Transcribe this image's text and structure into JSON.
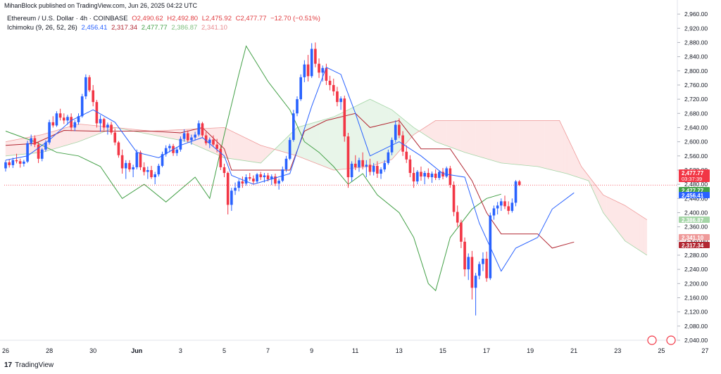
{
  "header": {
    "published": "MihanBlock published on TradingView.com, Jun 26, 2025 04:22 UTC",
    "symbol": "Ethereum / U.S. Dollar · 4h · COINBASE",
    "open": "O2,490.62",
    "high": "H2,492.80",
    "low": "L2,475.92",
    "close": "C2,477.77",
    "change": "−12.70 (−0.51%)",
    "indicator": "Ichimoku (9, 26, 52, 26)",
    "ind_v1": "2,456.41",
    "ind_v2": "2,317.34",
    "ind_v3": "2,477.77",
    "ind_v4": "2,386.87",
    "ind_v5": "2,341.10"
  },
  "footer": {
    "brand": "TradingView",
    "logo": "17"
  },
  "colors": {
    "up": "#2962ff",
    "down": "#f23645",
    "tenkan": "#2962ff",
    "kijun": "#b22833",
    "chikou": "#43a047",
    "span_a": "#a5d6a7",
    "span_b": "#ef9a9a",
    "cloud_green": "#e8f5e9",
    "cloud_red": "#fde7e7"
  },
  "chart_data": {
    "type": "candlestick",
    "title": "Ethereum / U.S. Dollar · 4h · COINBASE",
    "ylim": [
      2040,
      2980
    ],
    "y_ticks": [
      "2,960.00",
      "2,920.00",
      "2,880.00",
      "2,840.00",
      "2,800.00",
      "2,760.00",
      "2,720.00",
      "2,680.00",
      "2,640.00",
      "2,600.00",
      "2,560.00",
      "2,520.00",
      "2,480.00",
      "2,440.00",
      "2,400.00",
      "2,360.00",
      "2,320.00",
      "2,280.00",
      "2,240.00",
      "2,200.00",
      "2,160.00",
      "2,120.00",
      "2,080.00",
      "2,040.00"
    ],
    "x_ticks": [
      "26",
      "28",
      "30",
      "Jun",
      "3",
      "5",
      "7",
      "9",
      "11",
      "13",
      "15",
      "17",
      "19",
      "21",
      "23",
      "25",
      "27"
    ],
    "price_labels": [
      {
        "value": 2477.77,
        "text": "2,477.77",
        "sub": "03:37:39",
        "color": "#f23645"
      },
      {
        "value": 2477.77,
        "text": "2,477.77",
        "color": "#43a047"
      },
      {
        "value": 2456.41,
        "text": "2,456.41",
        "color": "#2962ff"
      },
      {
        "value": 2386.87,
        "text": "2,386.87",
        "color": "#a5d6a7"
      },
      {
        "value": 2341.1,
        "text": "2,341.10",
        "color": "#ef9a9a"
      },
      {
        "value": 2317.34,
        "text": "2,317.34",
        "color": "#b22833"
      }
    ],
    "x_start": "2025-05-26",
    "bar_days": 0.1667,
    "candles": [
      [
        2525,
        2548,
        2516,
        2542
      ],
      [
        2542,
        2551,
        2527,
        2534
      ],
      [
        2534,
        2555,
        2526,
        2548
      ],
      [
        2548,
        2566,
        2539,
        2545
      ],
      [
        2545,
        2552,
        2527,
        2538
      ],
      [
        2538,
        2549,
        2530,
        2544
      ],
      [
        2544,
        2603,
        2540,
        2596
      ],
      [
        2596,
        2620,
        2588,
        2610
      ],
      [
        2610,
        2618,
        2585,
        2592
      ],
      [
        2592,
        2600,
        2540,
        2552
      ],
      [
        2552,
        2582,
        2545,
        2578
      ],
      [
        2578,
        2604,
        2572,
        2598
      ],
      [
        2598,
        2662,
        2592,
        2655
      ],
      [
        2655,
        2672,
        2640,
        2646
      ],
      [
        2646,
        2686,
        2642,
        2680
      ],
      [
        2680,
        2693,
        2660,
        2668
      ],
      [
        2668,
        2680,
        2650,
        2660
      ],
      [
        2660,
        2676,
        2648,
        2670
      ],
      [
        2670,
        2680,
        2630,
        2640
      ],
      [
        2640,
        2661,
        2630,
        2655
      ],
      [
        2655,
        2680,
        2648,
        2672
      ],
      [
        2672,
        2735,
        2668,
        2728
      ],
      [
        2728,
        2790,
        2720,
        2782
      ],
      [
        2782,
        2788,
        2740,
        2745
      ],
      [
        2745,
        2760,
        2700,
        2712
      ],
      [
        2712,
        2718,
        2640,
        2652
      ],
      [
        2652,
        2675,
        2628,
        2664
      ],
      [
        2664,
        2668,
        2632,
        2640
      ],
      [
        2640,
        2654,
        2620,
        2648
      ],
      [
        2648,
        2656,
        2620,
        2626
      ],
      [
        2626,
        2638,
        2590,
        2598
      ],
      [
        2598,
        2602,
        2555,
        2562
      ],
      [
        2562,
        2578,
        2510,
        2525
      ],
      [
        2525,
        2548,
        2495,
        2540
      ],
      [
        2540,
        2548,
        2515,
        2522
      ],
      [
        2522,
        2535,
        2500,
        2528
      ],
      [
        2528,
        2578,
        2522,
        2570
      ],
      [
        2570,
        2575,
        2520,
        2528
      ],
      [
        2528,
        2542,
        2505,
        2515
      ],
      [
        2515,
        2530,
        2495,
        2520
      ],
      [
        2520,
        2532,
        2495,
        2500
      ],
      [
        2500,
        2515,
        2480,
        2508
      ],
      [
        2508,
        2538,
        2502,
        2532
      ],
      [
        2532,
        2572,
        2528,
        2565
      ],
      [
        2565,
        2590,
        2558,
        2582
      ],
      [
        2582,
        2594,
        2570,
        2588
      ],
      [
        2588,
        2594,
        2560,
        2568
      ],
      [
        2568,
        2585,
        2560,
        2578
      ],
      [
        2578,
        2615,
        2572,
        2608
      ],
      [
        2608,
        2635,
        2600,
        2624
      ],
      [
        2624,
        2632,
        2598,
        2604
      ],
      [
        2604,
        2620,
        2592,
        2612
      ],
      [
        2612,
        2628,
        2605,
        2620
      ],
      [
        2620,
        2660,
        2615,
        2652
      ],
      [
        2652,
        2656,
        2610,
        2618
      ],
      [
        2618,
        2628,
        2590,
        2596
      ],
      [
        2596,
        2612,
        2582,
        2606
      ],
      [
        2606,
        2618,
        2586,
        2592
      ],
      [
        2592,
        2608,
        2570,
        2580
      ],
      [
        2580,
        2588,
        2520,
        2528
      ],
      [
        2528,
        2538,
        2500,
        2512
      ],
      [
        2512,
        2516,
        2395,
        2422
      ],
      [
        2422,
        2470,
        2405,
        2462
      ],
      [
        2462,
        2485,
        2450,
        2470
      ],
      [
        2470,
        2494,
        2460,
        2488
      ],
      [
        2488,
        2502,
        2470,
        2482
      ],
      [
        2482,
        2508,
        2476,
        2500
      ],
      [
        2500,
        2512,
        2490,
        2496
      ],
      [
        2496,
        2505,
        2480,
        2488
      ],
      [
        2488,
        2512,
        2482,
        2508
      ],
      [
        2508,
        2515,
        2492,
        2500
      ],
      [
        2500,
        2512,
        2485,
        2505
      ],
      [
        2505,
        2512,
        2488,
        2494
      ],
      [
        2494,
        2508,
        2478,
        2502
      ],
      [
        2502,
        2510,
        2475,
        2482
      ],
      [
        2482,
        2496,
        2465,
        2490
      ],
      [
        2490,
        2530,
        2486,
        2522
      ],
      [
        2522,
        2560,
        2515,
        2552
      ],
      [
        2552,
        2612,
        2548,
        2605
      ],
      [
        2605,
        2690,
        2600,
        2680
      ],
      [
        2680,
        2728,
        2672,
        2720
      ],
      [
        2720,
        2790,
        2715,
        2782
      ],
      [
        2782,
        2830,
        2768,
        2818
      ],
      [
        2818,
        2845,
        2770,
        2785
      ],
      [
        2785,
        2878,
        2780,
        2862
      ],
      [
        2862,
        2880,
        2810,
        2820
      ],
      [
        2820,
        2835,
        2780,
        2795
      ],
      [
        2795,
        2815,
        2770,
        2808
      ],
      [
        2808,
        2820,
        2760,
        2772
      ],
      [
        2772,
        2786,
        2745,
        2760
      ],
      [
        2760,
        2778,
        2730,
        2742
      ],
      [
        2742,
        2755,
        2700,
        2712
      ],
      [
        2712,
        2728,
        2690,
        2722
      ],
      [
        2722,
        2730,
        2600,
        2615
      ],
      [
        2615,
        2625,
        2470,
        2500
      ],
      [
        2500,
        2545,
        2488,
        2538
      ],
      [
        2538,
        2562,
        2520,
        2528
      ],
      [
        2528,
        2555,
        2515,
        2548
      ],
      [
        2548,
        2570,
        2522,
        2530
      ],
      [
        2530,
        2548,
        2500,
        2535
      ],
      [
        2535,
        2552,
        2505,
        2515
      ],
      [
        2515,
        2540,
        2505,
        2532
      ],
      [
        2532,
        2545,
        2498,
        2510
      ],
      [
        2510,
        2528,
        2495,
        2522
      ],
      [
        2522,
        2548,
        2515,
        2540
      ],
      [
        2540,
        2578,
        2535,
        2570
      ],
      [
        2570,
        2612,
        2562,
        2605
      ],
      [
        2605,
        2660,
        2598,
        2648
      ],
      [
        2648,
        2666,
        2610,
        2618
      ],
      [
        2618,
        2630,
        2560,
        2572
      ],
      [
        2572,
        2590,
        2540,
        2550
      ],
      [
        2550,
        2562,
        2500,
        2512
      ],
      [
        2512,
        2528,
        2470,
        2488
      ],
      [
        2488,
        2520,
        2480,
        2515
      ],
      [
        2515,
        2530,
        2490,
        2502
      ],
      [
        2502,
        2518,
        2480,
        2512
      ],
      [
        2512,
        2525,
        2495,
        2500
      ],
      [
        2500,
        2516,
        2484,
        2510
      ],
      [
        2510,
        2522,
        2492,
        2498
      ],
      [
        2498,
        2520,
        2492,
        2515
      ],
      [
        2515,
        2526,
        2494,
        2502
      ],
      [
        2502,
        2530,
        2498,
        2525
      ],
      [
        2525,
        2532,
        2470,
        2478
      ],
      [
        2478,
        2488,
        2390,
        2402
      ],
      [
        2402,
        2420,
        2360,
        2372
      ],
      [
        2372,
        2380,
        2300,
        2318
      ],
      [
        2318,
        2330,
        2220,
        2240
      ],
      [
        2240,
        2285,
        2210,
        2275
      ],
      [
        2275,
        2292,
        2155,
        2188
      ],
      [
        2188,
        2230,
        2110,
        2222
      ],
      [
        2222,
        2262,
        2212,
        2255
      ],
      [
        2255,
        2288,
        2235,
        2270
      ],
      [
        2270,
        2290,
        2205,
        2215
      ],
      [
        2215,
        2400,
        2210,
        2392
      ],
      [
        2392,
        2420,
        2380,
        2412
      ],
      [
        2412,
        2430,
        2395,
        2420
      ],
      [
        2420,
        2440,
        2405,
        2432
      ],
      [
        2432,
        2448,
        2410,
        2418
      ],
      [
        2418,
        2432,
        2395,
        2405
      ],
      [
        2405,
        2440,
        2400,
        2428
      ],
      [
        2428,
        2492,
        2418,
        2488
      ],
      [
        2488,
        2492,
        2475,
        2478
      ]
    ],
    "tenkan": [
      [
        0,
        2548
      ],
      [
        6,
        2560
      ],
      [
        12,
        2605
      ],
      [
        18,
        2660
      ],
      [
        24,
        2690
      ],
      [
        30,
        2655
      ],
      [
        36,
        2570
      ],
      [
        42,
        2555
      ],
      [
        48,
        2590
      ],
      [
        54,
        2612
      ],
      [
        60,
        2560
      ],
      [
        62,
        2505
      ],
      [
        68,
        2480
      ],
      [
        74,
        2498
      ],
      [
        78,
        2510
      ],
      [
        84,
        2700
      ],
      [
        88,
        2810
      ],
      [
        92,
        2790
      ],
      [
        96,
        2680
      ],
      [
        100,
        2560
      ],
      [
        108,
        2600
      ],
      [
        114,
        2560
      ],
      [
        120,
        2510
      ],
      [
        126,
        2500
      ],
      [
        130,
        2370
      ],
      [
        136,
        2235
      ],
      [
        140,
        2300
      ],
      [
        146,
        2330
      ],
      [
        150,
        2410
      ],
      [
        156,
        2456
      ]
    ],
    "kijun": [
      [
        0,
        2590
      ],
      [
        8,
        2595
      ],
      [
        16,
        2632
      ],
      [
        24,
        2630
      ],
      [
        32,
        2630
      ],
      [
        40,
        2630
      ],
      [
        48,
        2625
      ],
      [
        54,
        2640
      ],
      [
        60,
        2580
      ],
      [
        62,
        2520
      ],
      [
        70,
        2520
      ],
      [
        78,
        2520
      ],
      [
        82,
        2630
      ],
      [
        88,
        2660
      ],
      [
        96,
        2680
      ],
      [
        100,
        2640
      ],
      [
        108,
        2660
      ],
      [
        114,
        2580
      ],
      [
        122,
        2580
      ],
      [
        128,
        2490
      ],
      [
        132,
        2400
      ],
      [
        136,
        2340
      ],
      [
        146,
        2340
      ],
      [
        150,
        2300
      ],
      [
        156,
        2317
      ]
    ],
    "chikou": [
      [
        0,
        2630
      ],
      [
        8,
        2600
      ],
      [
        14,
        2570
      ],
      [
        20,
        2560
      ],
      [
        26,
        2530
      ],
      [
        32,
        2440
      ],
      [
        38,
        2480
      ],
      [
        44,
        2430
      ],
      [
        52,
        2500
      ],
      [
        56,
        2440
      ],
      [
        60,
        2620
      ],
      [
        64,
        2790
      ],
      [
        66,
        2870
      ],
      [
        72,
        2770
      ],
      [
        78,
        2690
      ],
      [
        82,
        2600
      ],
      [
        86,
        2570
      ],
      [
        90,
        2530
      ],
      [
        94,
        2480
      ],
      [
        98,
        2510
      ],
      [
        102,
        2450
      ],
      [
        108,
        2400
      ],
      [
        112,
        2330
      ],
      [
        116,
        2200
      ],
      [
        118,
        2180
      ],
      [
        122,
        2330
      ],
      [
        128,
        2410
      ],
      [
        132,
        2440
      ],
      [
        136,
        2452
      ]
    ],
    "span_a": [
      [
        0,
        2560
      ],
      [
        10,
        2570
      ],
      [
        20,
        2600
      ],
      [
        30,
        2640
      ],
      [
        40,
        2620
      ],
      [
        50,
        2600
      ],
      [
        60,
        2555
      ],
      [
        70,
        2540
      ],
      [
        80,
        2640
      ],
      [
        90,
        2670
      ],
      [
        100,
        2720
      ],
      [
        106,
        2690
      ],
      [
        112,
        2640
      ],
      [
        118,
        2600
      ],
      [
        126,
        2570
      ],
      [
        136,
        2540
      ],
      [
        146,
        2530
      ],
      [
        154,
        2510
      ],
      [
        160,
        2490
      ],
      [
        164,
        2400
      ],
      [
        170,
        2320
      ],
      [
        176,
        2280
      ]
    ],
    "span_b": [
      [
        0,
        2600
      ],
      [
        10,
        2620
      ],
      [
        20,
        2650
      ],
      [
        30,
        2640
      ],
      [
        40,
        2630
      ],
      [
        50,
        2635
      ],
      [
        60,
        2640
      ],
      [
        70,
        2590
      ],
      [
        80,
        2560
      ],
      [
        90,
        2520
      ],
      [
        100,
        2530
      ],
      [
        106,
        2550
      ],
      [
        112,
        2620
      ],
      [
        118,
        2660
      ],
      [
        126,
        2660
      ],
      [
        136,
        2660
      ],
      [
        146,
        2660
      ],
      [
        152,
        2660
      ],
      [
        158,
        2530
      ],
      [
        164,
        2450
      ],
      [
        170,
        2420
      ],
      [
        176,
        2380
      ]
    ]
  }
}
